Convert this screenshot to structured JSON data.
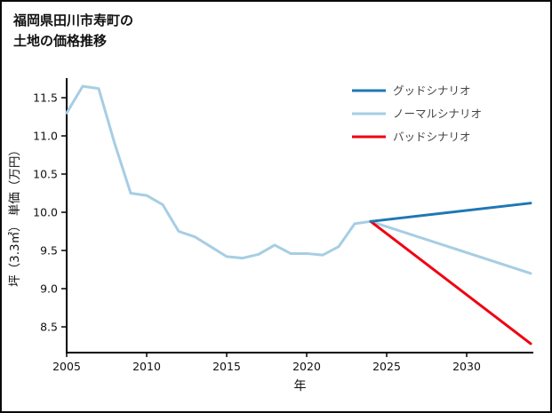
{
  "title": {
    "line1": "福岡県田川市寿町の",
    "line2": "土地の価格推移"
  },
  "chart_data": {
    "type": "line",
    "xlabel": "年",
    "ylabel": "坪（3.3㎡） 単価（万円）",
    "x_ticks": [
      2005,
      2010,
      2015,
      2020,
      2025,
      2030
    ],
    "y_ticks": [
      8.5,
      9.0,
      9.5,
      10.0,
      10.5,
      11.0,
      11.5
    ],
    "x_range": [
      2005,
      2034
    ],
    "y_range": [
      8.2,
      11.8
    ],
    "legend_position": "top-right",
    "grid": false,
    "colors": {
      "history": "#a6cee3",
      "good": "#1f77b4",
      "normal": "#a6cee3",
      "bad": "#f00011",
      "axis": "#000000",
      "legend_text": "#444444"
    },
    "series": [
      {
        "name": "",
        "color_key": "history",
        "in_legend": false,
        "x": [
          2005,
          2006,
          2007,
          2008,
          2009,
          2010,
          2011,
          2012,
          2013,
          2014,
          2015,
          2016,
          2017,
          2018,
          2019,
          2020,
          2021,
          2022,
          2023,
          2024
        ],
        "values": [
          11.3,
          11.65,
          11.62,
          10.9,
          10.25,
          10.22,
          10.1,
          9.75,
          9.68,
          9.55,
          9.42,
          9.4,
          9.45,
          9.57,
          9.46,
          9.46,
          9.44,
          9.55,
          9.85,
          9.88
        ]
      },
      {
        "name": "ノーマルシナリオ",
        "color_key": "normal",
        "in_legend": true,
        "legend_order": 2,
        "x": [
          2024,
          2034
        ],
        "values": [
          9.88,
          9.2
        ]
      },
      {
        "name": "バッドシナリオ",
        "color_key": "bad",
        "in_legend": true,
        "legend_order": 3,
        "x": [
          2024,
          2034
        ],
        "values": [
          9.88,
          8.28
        ]
      },
      {
        "name": "グッドシナリオ",
        "color_key": "good",
        "in_legend": true,
        "legend_order": 1,
        "x": [
          2024,
          2034
        ],
        "values": [
          9.88,
          10.12
        ]
      }
    ],
    "legend": [
      "グッドシナリオ",
      "ノーマルシナリオ",
      "バッドシナリオ"
    ],
    "legend_colors": [
      "#1f77b4",
      "#a6cee3",
      "#f00011"
    ]
  }
}
